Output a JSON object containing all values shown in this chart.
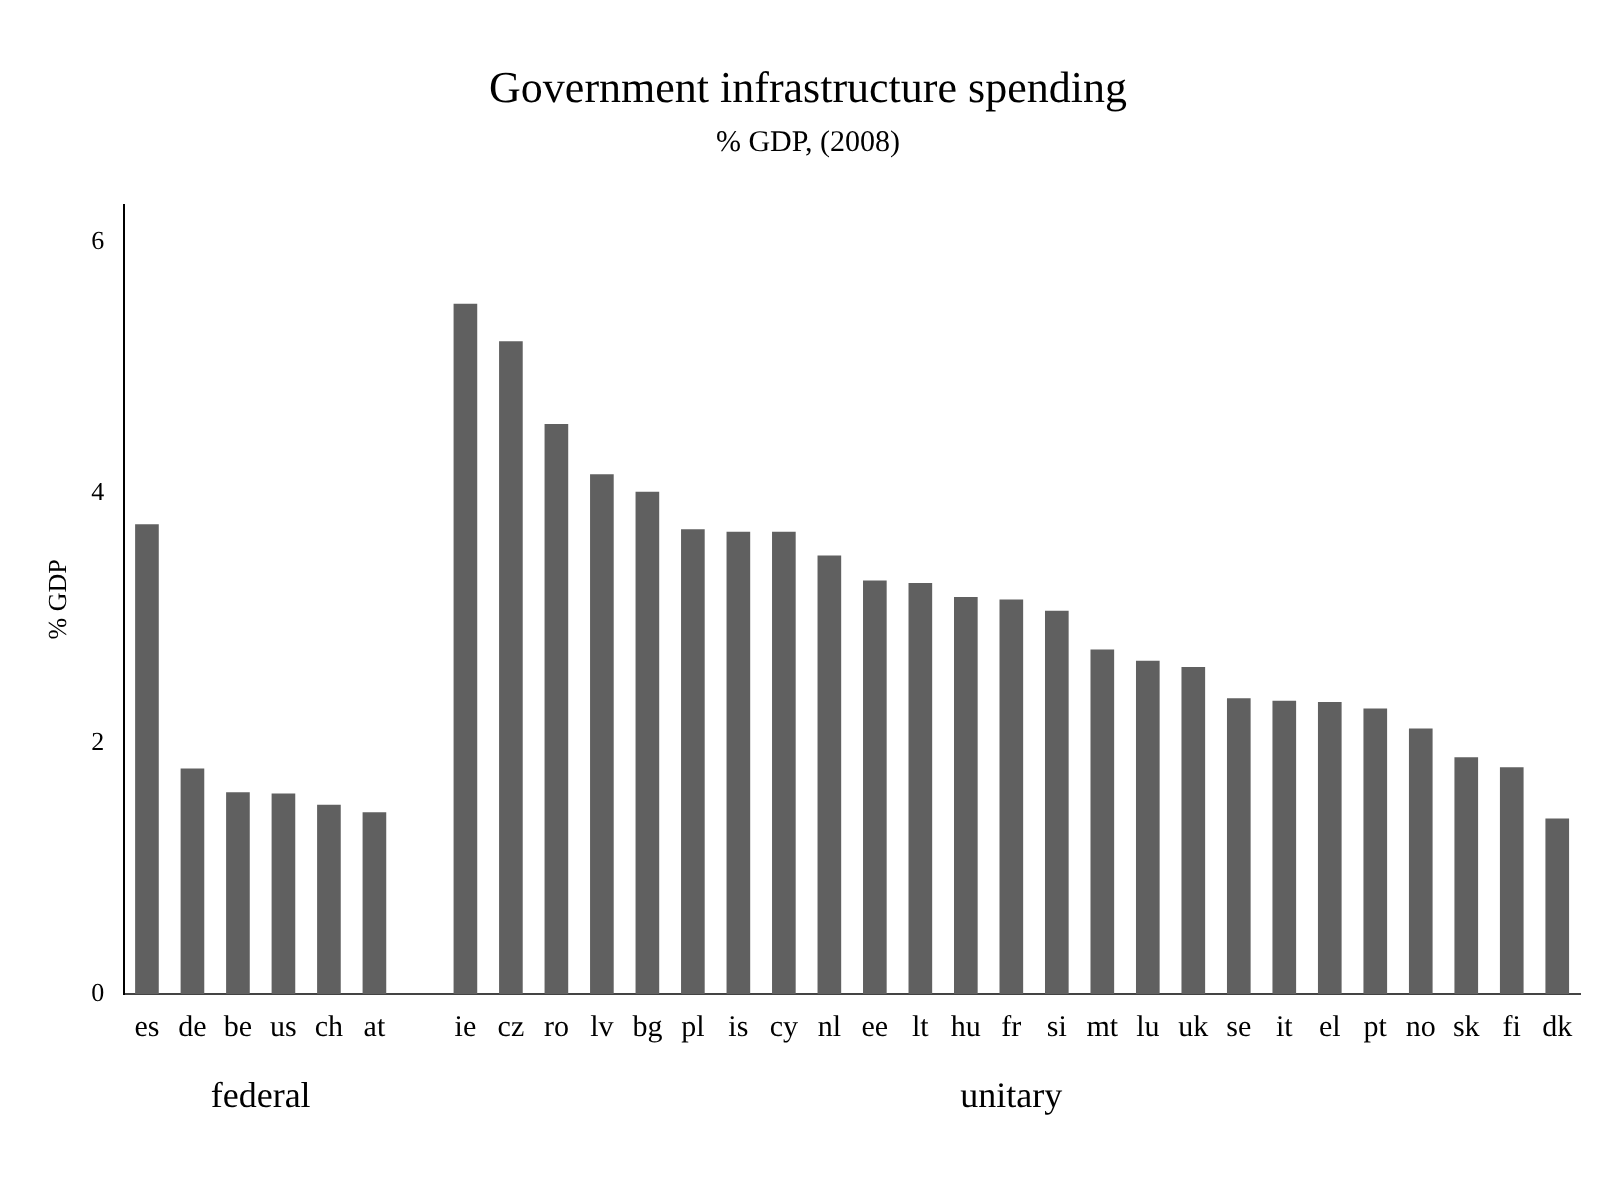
{
  "chart_data": {
    "type": "bar",
    "title": "Government infrastructure spending",
    "subtitle": "% GDP, (2008)",
    "ylabel": "% GDP",
    "categories": [
      "es",
      "de",
      "be",
      "us",
      "ch",
      "at",
      null,
      "ie",
      "cz",
      "ro",
      "lv",
      "bg",
      "pl",
      "is",
      "cy",
      "nl",
      "ee",
      "lt",
      "hu",
      "fr",
      "si",
      "mt",
      "lu",
      "uk",
      "se",
      "it",
      "el",
      "pt",
      "no",
      "sk",
      "fi",
      "dk"
    ],
    "values": [
      3.75,
      1.8,
      1.61,
      1.6,
      1.51,
      1.45,
      null,
      5.51,
      5.21,
      4.55,
      4.15,
      4.01,
      3.71,
      3.69,
      3.69,
      3.5,
      3.3,
      3.28,
      3.17,
      3.15,
      3.06,
      2.75,
      2.66,
      2.61,
      2.36,
      2.34,
      2.33,
      2.28,
      2.12,
      1.89,
      1.81,
      1.4
    ],
    "color": "#606060",
    "annotations": [
      "federal",
      "unitary"
    ],
    "ylim": [
      0,
      6.3
    ],
    "yticks": [
      0,
      2,
      4,
      6
    ],
    "grid": false,
    "legend": false
  }
}
